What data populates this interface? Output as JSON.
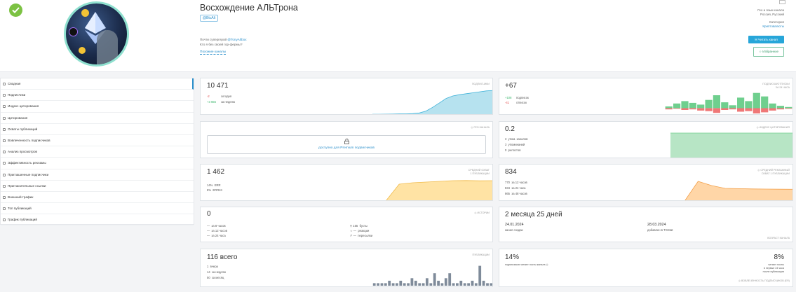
{
  "colors": {
    "accent": "#2a8fcb",
    "blue_area": "#9ed8ea",
    "green_bar": "#6fcf8e",
    "red_bar": "#ef7777",
    "yellow_area": "#ffd986",
    "orange_area": "#ffc88a",
    "gray_bar": "#7f8b9a"
  },
  "header": {
    "title": "Восхождение АЛЬТрона",
    "handle": "@BtcAlt",
    "desc_prefix": "Почти супергерой ",
    "desc_link": "@TonyAltbox",
    "desc_line2": "Кто я без своей гор-фермы?",
    "similar_channels": "Похожие каналы",
    "geo_label": "Гео и язык канала",
    "geo_value": "Россия, Русский",
    "category_label": "Категория",
    "category_value": "Криптовалюты",
    "read_button": "Читать канал",
    "favorite_button": "Избранное"
  },
  "sidebar": {
    "items": [
      {
        "label": "Сводная",
        "icon": "summary-icon"
      },
      {
        "label": "Подписчики",
        "icon": "users-icon"
      },
      {
        "label": "Индекс цитирования",
        "icon": "citation-index-icon"
      },
      {
        "label": "Цитирования",
        "icon": "quote-icon"
      },
      {
        "label": "Охваты публикаций",
        "icon": "eye-icon"
      },
      {
        "label": "Вовлеченность подписчиков",
        "icon": "engagement-icon"
      },
      {
        "label": "Анализ просмотров",
        "icon": "views-icon"
      },
      {
        "label": "Эффективность рекламы",
        "icon": "ads-icon"
      },
      {
        "label": "Приглашенные подписчики",
        "icon": "invite-icon"
      },
      {
        "label": "Пригласительные ссылки",
        "icon": "link-icon"
      },
      {
        "label": "Внешний трафик",
        "icon": "traffic-icon"
      },
      {
        "label": "Топ публикаций",
        "icon": "top-icon"
      },
      {
        "label": "График публикаций",
        "icon": "calendar-icon"
      }
    ]
  },
  "cards": {
    "subscribers": {
      "value": "10 471",
      "tag": "подписчики",
      "today_value": "-2",
      "today_label": "сегодня",
      "week_value": "+3 655",
      "week_label": "за неделю"
    },
    "subs_today": {
      "value": "+67",
      "tag1": "подписки/отписки",
      "tag2": "за 24 часа",
      "sub_value": "+108",
      "sub_label": "подписок",
      "unsub_value": "-41",
      "unsub_label": "отписок"
    },
    "geo": {
      "tag": "гео канала",
      "link": "доступно для Premium подписчиков"
    },
    "citation": {
      "value": "0.2",
      "tag": "индекс цитирования",
      "rows": [
        {
          "n": "3",
          "l": "упом. каналов"
        },
        {
          "n": "3",
          "l": "упоминаний"
        },
        {
          "n": "0",
          "l": "репостов"
        }
      ]
    },
    "reach": {
      "value": "1 462",
      "tag1": "средний охват",
      "tag2": "1 публикации",
      "err_value": "14%",
      "err_label": "ERR",
      "err24_value": "8%",
      "err24_label": "ERR24"
    },
    "ad_reach": {
      "value": "834",
      "tag1": "средний рекламный",
      "tag2": "охват 1 публикации",
      "rows": [
        {
          "n": "770",
          "l": "за 12 часов"
        },
        {
          "n": "834",
          "l": "за 24 часа"
        },
        {
          "n": "865",
          "l": "за 48 часов"
        }
      ]
    },
    "stories": {
      "value": "0",
      "tag": "истории",
      "rows": [
        {
          "n": "—",
          "l": "за 8 часов"
        },
        {
          "n": "—",
          "l": "за 12 часов"
        },
        {
          "n": "—",
          "l": "за 24 часа"
        }
      ],
      "rows2": [
        {
          "n": "155",
          "l": "бусты"
        },
        {
          "n": "—",
          "l": "реакции"
        },
        {
          "n": "—",
          "l": "пересылки"
        }
      ]
    },
    "age": {
      "value": "2 месяца 25 дней",
      "created_date": "24.01.2024",
      "created_label": "канал создан",
      "added_date": "28.03.2024",
      "added_label": "добавлен в TGStat",
      "tag": "возраст канала"
    },
    "posts": {
      "value": "116 всего",
      "tag": "публикации",
      "rows": [
        {
          "n": "1",
          "l": "вчера"
        },
        {
          "n": "14",
          "l": "за неделю"
        },
        {
          "n": "50",
          "l": "за месяц"
        }
      ]
    },
    "engagement": {
      "left_value": "14%",
      "left_label": "подписчиков читают посты канала",
      "right_value": "8%",
      "right_l1": "читают посты",
      "right_l2": "в первые 24 часа",
      "right_l3": "после публикации",
      "tag": "вовлеченность подписчиков (ER)"
    }
  },
  "chart_data": [
    {
      "type": "area",
      "title": "подписчики",
      "series": [
        {
          "name": "подписчики",
          "values": [
            6700,
            6700,
            6710,
            6720,
            6740,
            6760,
            6800,
            6900,
            7200,
            7800,
            8500,
            9200,
            9600,
            9800,
            9950,
            10100,
            10250,
            10400,
            10471
          ]
        }
      ]
    },
    {
      "type": "bar",
      "title": "подписки/отписки",
      "series": [
        {
          "name": "подписки",
          "values": [
            3,
            8,
            12,
            9,
            6,
            14,
            22,
            10,
            5,
            18,
            12,
            26,
            20,
            8,
            4,
            2
          ]
        },
        {
          "name": "отписки",
          "values": [
            2,
            1,
            3,
            2,
            4,
            5,
            8,
            3,
            2,
            6,
            5,
            9,
            7,
            4,
            2,
            1
          ]
        }
      ]
    },
    {
      "type": "area",
      "title": "индекс цитирования",
      "series": [
        {
          "name": "индекс цитирования",
          "values": [
            0.2,
            0.2,
            0.2,
            0.2
          ]
        }
      ]
    },
    {
      "type": "area",
      "title": "средний охват 1 публикации",
      "series": [
        {
          "name": "средний охват",
          "values": [
            0,
            0,
            1200,
            1300,
            1350,
            1400,
            1450,
            1462,
            1440,
            1450
          ]
        }
      ]
    },
    {
      "type": "area",
      "title": "средний рекламный охват 1 публикации",
      "series": [
        {
          "name": "средний рекламный охват",
          "values": [
            0,
            0,
            1400,
            1100,
            900,
            880,
            860,
            850,
            840,
            834
          ]
        }
      ]
    },
    {
      "type": "bar",
      "title": "публикации",
      "series": [
        {
          "name": "публикации",
          "values": [
            1,
            1,
            1,
            1,
            2,
            1,
            1,
            2,
            1,
            1,
            3,
            2,
            1,
            1,
            3,
            1,
            5,
            2,
            1,
            3,
            5,
            1,
            1,
            2,
            1,
            1,
            2,
            1,
            8,
            2,
            1,
            1
          ]
        }
      ]
    }
  ]
}
